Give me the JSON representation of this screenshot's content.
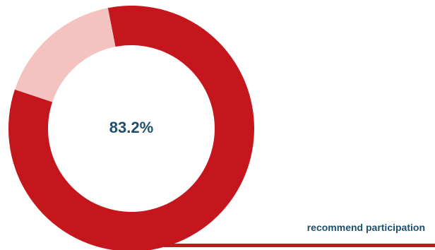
{
  "chart_data": {
    "type": "pie",
    "subtype": "donut",
    "slices": [
      {
        "label": "recommend participation",
        "value": 83.2,
        "color": "#c4161c"
      },
      {
        "label": "",
        "value": 16.8,
        "color": "#f4c2bf"
      }
    ],
    "center_label": "83.2%",
    "center_label_color": "#1f4e6b",
    "caption": "recommend participation",
    "caption_color": "#1f4e6b",
    "accent_color": "#c4161c"
  }
}
